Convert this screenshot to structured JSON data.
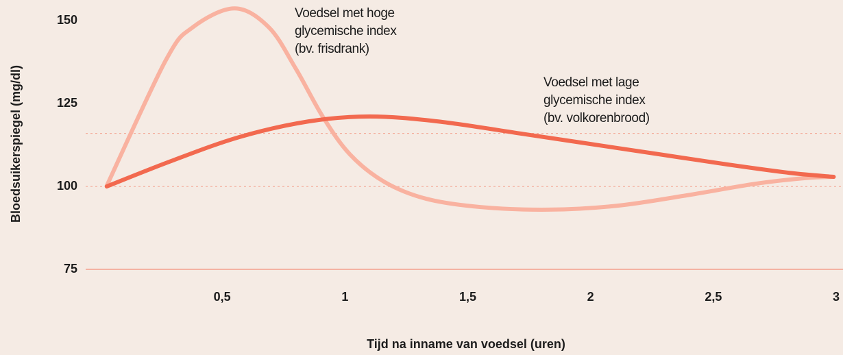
{
  "chart_data": {
    "type": "line",
    "y_label": "Bloedsuikerspiegel (mg/dl)",
    "x_label": "Tijd na inname van voedsel (uren)",
    "xlim": [
      0,
      3
    ],
    "ylim": [
      75,
      155
    ],
    "yticks": [
      75,
      100,
      125,
      150
    ],
    "xticks": [
      {
        "value": 0.5,
        "label": "0,5"
      },
      1,
      {
        "value": 1.5,
        "label": "1,5"
      },
      2,
      {
        "value": 2.5,
        "label": "2,5"
      },
      3
    ],
    "reference_lines": [
      100,
      116
    ],
    "annotations": [
      {
        "lines": [
          "Voedsel met hoge",
          "glycemische index",
          "(bv. frisdrank)"
        ]
      },
      {
        "lines": [
          "Voedsel met lage",
          "glycemische index",
          "(bv. volkorenbrood)"
        ]
      }
    ],
    "series": [
      {
        "color": "#f9b2a0",
        "x": [
          0.03,
          0.27,
          0.38,
          0.55,
          0.69,
          0.8,
          0.91,
          1.02,
          1.16,
          1.33,
          1.55,
          1.83,
          2.11,
          2.39,
          2.67,
          2.87,
          2.99
        ],
        "values": [
          100.2,
          138,
          148,
          153.7,
          148,
          135.5,
          121,
          109.7,
          101.4,
          96.3,
          93.8,
          93,
          94.2,
          97.3,
          100.8,
          102.5,
          102.9
        ]
      },
      {
        "color": "#f2694f",
        "x": [
          0.03,
          0.29,
          0.57,
          0.85,
          1.1,
          1.38,
          1.72,
          2.0,
          2.28,
          2.56,
          2.81,
          2.99
        ],
        "values": [
          100,
          107.6,
          114.9,
          119.6,
          121.1,
          119.6,
          115.9,
          112.8,
          109.7,
          106.6,
          104.1,
          102.9
        ]
      }
    ]
  }
}
